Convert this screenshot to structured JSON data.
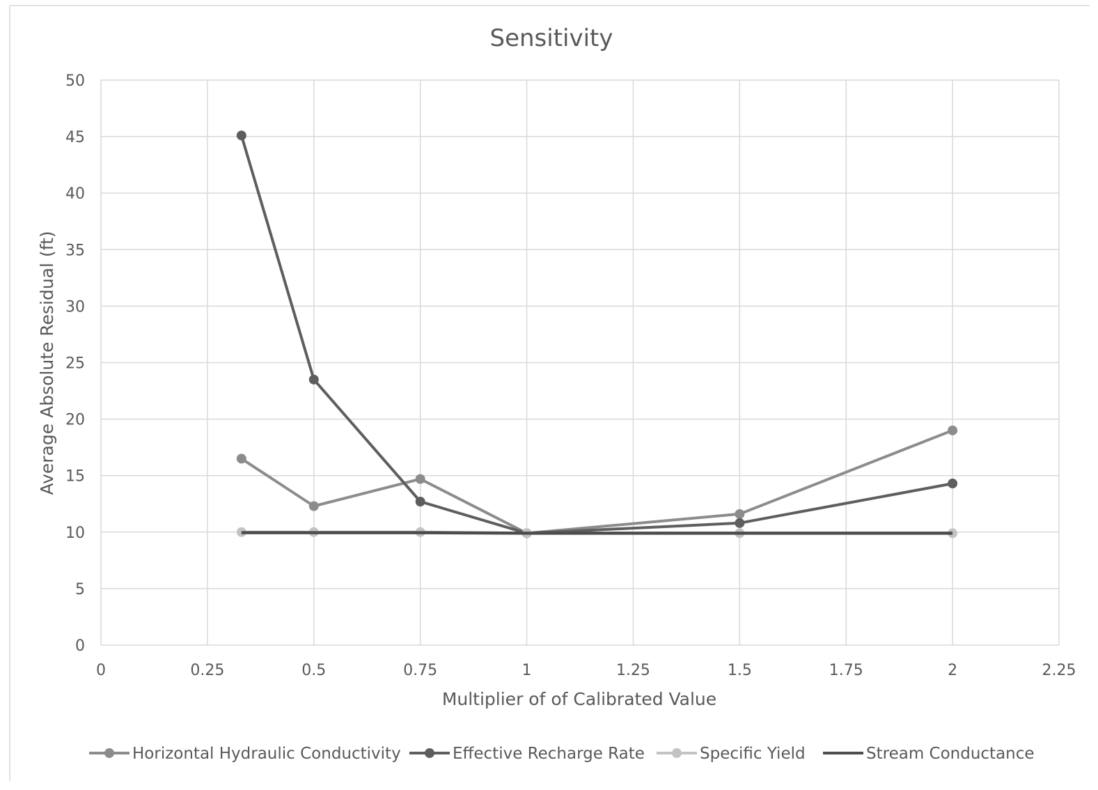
{
  "chart_data": {
    "type": "scatter",
    "title": "Sensitivity",
    "xlabel": "Multiplier of of Calibrated Value",
    "ylabel": "Average Absolute Residual (ft)",
    "xlim": [
      0,
      2.25
    ],
    "ylim": [
      0,
      50
    ],
    "xticks": [
      "0",
      "0.25",
      "0.5",
      "0.75",
      "1",
      "1.25",
      "1.5",
      "1.75",
      "2",
      "2.25"
    ],
    "yticks": [
      "0",
      "5",
      "10",
      "15",
      "20",
      "25",
      "30",
      "35",
      "40",
      "45",
      "50"
    ],
    "grid": true,
    "legend_position": "bottom",
    "series": [
      {
        "name": "Horizontal Hydraulic Conductivity",
        "color": "#8c8c8c",
        "marker": true,
        "x": [
          0.33,
          0.5,
          0.75,
          1,
          1.5,
          2
        ],
        "y": [
          16.5,
          12.3,
          14.7,
          9.9,
          11.6,
          19.0
        ]
      },
      {
        "name": "Effective Recharge Rate",
        "color": "#5e5e5e",
        "marker": true,
        "x": [
          0.33,
          0.5,
          0.75,
          1,
          1.5,
          2
        ],
        "y": [
          45.1,
          23.5,
          12.7,
          9.9,
          10.8,
          14.3
        ]
      },
      {
        "name": "Specific Yield",
        "color": "#c3c3c3",
        "marker": true,
        "x": [
          0.33,
          0.5,
          0.75,
          1,
          1.5,
          2
        ],
        "y": [
          10.0,
          10.0,
          10.0,
          9.9,
          9.9,
          9.9
        ]
      },
      {
        "name": "Stream Conductance",
        "color": "#4d4d4d",
        "marker": false,
        "x": [
          0.33,
          0.5,
          0.75,
          1,
          1.5,
          2
        ],
        "y": [
          9.95,
          9.95,
          9.95,
          9.9,
          9.9,
          9.9
        ]
      }
    ]
  }
}
